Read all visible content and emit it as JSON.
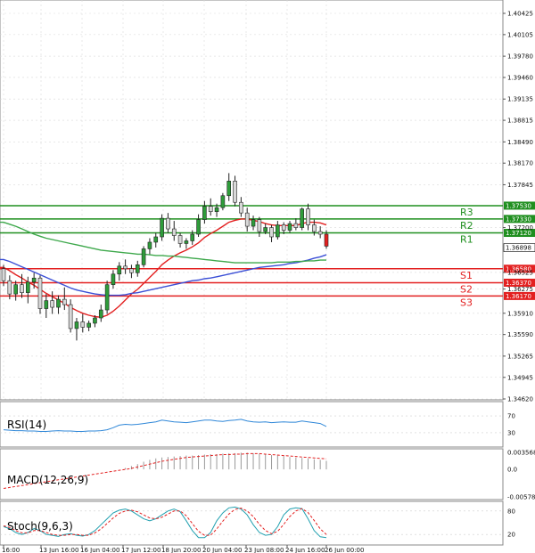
{
  "chart_data": [
    {
      "type": "candlestick",
      "price_ticks": [
        "1.40425",
        "1.40105",
        "1.39780",
        "1.39460",
        "1.39135",
        "1.38815",
        "1.38490",
        "1.38170",
        "1.37845",
        "1.37200",
        "1.36525",
        "1.36275",
        "1.35910",
        "1.35590",
        "1.35265",
        "1.34945",
        "1.34620"
      ],
      "time_labels": [
        "16:00",
        "13 Jun 16:00",
        "16 Jun 04:00",
        "17 Jun 12:00",
        "18 Jun 20:00",
        "20 Jun 04:00",
        "23 Jun 08:00",
        "24 Jun 16:00",
        "26 Jun 00:00"
      ],
      "current_price": "1.36898",
      "levels": [
        {
          "name": "R3",
          "value": "1.37530",
          "color": "#1f8f1f"
        },
        {
          "name": "R2",
          "value": "1.37330",
          "color": "#1f8f1f"
        },
        {
          "name": "R1",
          "value": "1.37120",
          "color": "#1f8f1f"
        },
        {
          "name": "S1",
          "value": "1.36580",
          "color": "#e32020"
        },
        {
          "name": "S2",
          "value": "1.36370",
          "color": "#e32020"
        },
        {
          "name": "S3",
          "value": "1.36170",
          "color": "#e32020"
        }
      ],
      "candles": [
        [
          1.3658,
          1.3664,
          1.3632,
          1.364
        ],
        [
          1.364,
          1.3648,
          1.3612,
          1.362
        ],
        [
          1.362,
          1.364,
          1.361,
          1.3634
        ],
        [
          1.3634,
          1.365,
          1.3614,
          1.3622
        ],
        [
          1.3622,
          1.3646,
          1.3606,
          1.3638
        ],
        [
          1.3638,
          1.3652,
          1.3628,
          1.3644
        ],
        [
          1.3644,
          1.3648,
          1.359,
          1.3598
        ],
        [
          1.3598,
          1.362,
          1.3584,
          1.361
        ],
        [
          1.361,
          1.3624,
          1.359,
          1.36
        ],
        [
          1.36,
          1.3618,
          1.359,
          1.3612
        ],
        [
          1.3612,
          1.363,
          1.3596,
          1.3604
        ],
        [
          1.3604,
          1.3612,
          1.3562,
          1.3568
        ],
        [
          1.3568,
          1.3584,
          1.355,
          1.3578
        ],
        [
          1.3578,
          1.359,
          1.3562,
          1.357
        ],
        [
          1.357,
          1.358,
          1.3564,
          1.3576
        ],
        [
          1.3576,
          1.3588,
          1.357,
          1.3584
        ],
        [
          1.3584,
          1.3604,
          1.3578,
          1.3596
        ],
        [
          1.3596,
          1.364,
          1.359,
          1.3634
        ],
        [
          1.3634,
          1.3656,
          1.3628,
          1.365
        ],
        [
          1.365,
          1.3668,
          1.364,
          1.3662
        ],
        [
          1.3662,
          1.3672,
          1.365,
          1.3658
        ],
        [
          1.3658,
          1.3664,
          1.3644,
          1.3652
        ],
        [
          1.3652,
          1.367,
          1.3646,
          1.3664
        ],
        [
          1.3664,
          1.3692,
          1.366,
          1.3688
        ],
        [
          1.3688,
          1.3704,
          1.368,
          1.3698
        ],
        [
          1.3698,
          1.3712,
          1.369,
          1.3706
        ],
        [
          1.3706,
          1.374,
          1.37,
          1.3734
        ],
        [
          1.3734,
          1.3742,
          1.3712,
          1.3718
        ],
        [
          1.3718,
          1.373,
          1.37,
          1.3708
        ],
        [
          1.3708,
          1.3712,
          1.369,
          1.3696
        ],
        [
          1.3696,
          1.3704,
          1.3688,
          1.37
        ],
        [
          1.37,
          1.3716,
          1.3694,
          1.371
        ],
        [
          1.371,
          1.374,
          1.3706,
          1.3732
        ],
        [
          1.3732,
          1.376,
          1.3726,
          1.3752
        ],
        [
          1.3752,
          1.3764,
          1.3738,
          1.3744
        ],
        [
          1.3744,
          1.3756,
          1.3736,
          1.375
        ],
        [
          1.375,
          1.3772,
          1.3746,
          1.3768
        ],
        [
          1.3768,
          1.3802,
          1.376,
          1.379
        ],
        [
          1.379,
          1.3798,
          1.3752,
          1.3758
        ],
        [
          1.3758,
          1.3766,
          1.3736,
          1.3742
        ],
        [
          1.3742,
          1.375,
          1.3714,
          1.3722
        ],
        [
          1.3722,
          1.3738,
          1.3716,
          1.3732
        ],
        [
          1.3732,
          1.3736,
          1.3706,
          1.3714
        ],
        [
          1.3714,
          1.3726,
          1.371,
          1.372
        ],
        [
          1.372,
          1.3724,
          1.3698,
          1.3706
        ],
        [
          1.3706,
          1.373,
          1.3702,
          1.3724
        ],
        [
          1.3724,
          1.3728,
          1.371,
          1.3716
        ],
        [
          1.3716,
          1.373,
          1.3712,
          1.3726
        ],
        [
          1.3726,
          1.3734,
          1.3716,
          1.372
        ],
        [
          1.372,
          1.375,
          1.3716,
          1.3748
        ],
        [
          1.3748,
          1.3756,
          1.3716,
          1.3724
        ],
        [
          1.3724,
          1.3732,
          1.3708,
          1.3714
        ],
        [
          1.3714,
          1.3722,
          1.3704,
          1.371
        ],
        [
          1.371,
          1.3716,
          1.3688,
          1.3692
        ]
      ],
      "series": [
        {
          "color": "#e32020",
          "values": [
            1.366,
            1.3655,
            1.3649,
            1.3644,
            1.3638,
            1.3633,
            1.3627,
            1.3621,
            1.3616,
            1.3611,
            1.3606,
            1.36,
            1.3595,
            1.3591,
            1.3588,
            1.3586,
            1.3585,
            1.3588,
            1.3594,
            1.3602,
            1.3611,
            1.362,
            1.3627,
            1.3636,
            1.3645,
            1.3654,
            1.3664,
            1.3671,
            1.3677,
            1.3682,
            1.3686,
            1.3691,
            1.3697,
            1.3705,
            1.3711,
            1.3716,
            1.3722,
            1.3728,
            1.3731,
            1.3733,
            1.3733,
            1.3731,
            1.3729,
            1.3726,
            1.3724,
            1.3723,
            1.3723,
            1.3723,
            1.3723,
            1.3726,
            1.3728,
            1.3728,
            1.3727,
            1.3724
          ]
        },
        {
          "color": "#3b4fd6",
          "values": [
            1.3672,
            1.3669,
            1.3665,
            1.3661,
            1.3657,
            1.3653,
            1.3649,
            1.3645,
            1.3641,
            1.3637,
            1.3633,
            1.3629,
            1.3626,
            1.3624,
            1.3622,
            1.362,
            1.3619,
            1.3618,
            1.3618,
            1.3618,
            1.3619,
            1.3621,
            1.3622,
            1.3624,
            1.3626,
            1.3628,
            1.363,
            1.3632,
            1.3634,
            1.3636,
            1.3638,
            1.364,
            1.3641,
            1.3643,
            1.3644,
            1.3646,
            1.3648,
            1.365,
            1.3652,
            1.3654,
            1.3656,
            1.3658,
            1.366,
            1.3661,
            1.3662,
            1.3663,
            1.3664,
            1.3666,
            1.3667,
            1.3669,
            1.3671,
            1.3674,
            1.3676,
            1.3679
          ]
        },
        {
          "color": "#3da84b",
          "values": [
            1.3728,
            1.3725,
            1.3722,
            1.3718,
            1.3714,
            1.371,
            1.3707,
            1.3704,
            1.3702,
            1.37,
            1.3698,
            1.3696,
            1.3694,
            1.3692,
            1.369,
            1.3688,
            1.3686,
            1.3685,
            1.3684,
            1.3683,
            1.3682,
            1.3681,
            1.368,
            1.368,
            1.3679,
            1.3678,
            1.3678,
            1.3677,
            1.3677,
            1.3676,
            1.3675,
            1.3674,
            1.3673,
            1.3672,
            1.3671,
            1.367,
            1.3669,
            1.3668,
            1.3667,
            1.3667,
            1.3667,
            1.3667,
            1.3667,
            1.3667,
            1.3667,
            1.3668,
            1.3668,
            1.3668,
            1.3669,
            1.3669,
            1.367,
            1.367,
            1.3671,
            1.3671
          ]
        }
      ]
    },
    {
      "type": "line",
      "label": "RSI(14)",
      "ticks": [
        "70",
        "30"
      ],
      "ylim": [
        0,
        100
      ],
      "values": [
        37,
        36,
        35,
        35,
        34,
        34,
        33,
        33,
        34,
        35,
        34,
        34,
        33,
        33,
        34,
        34,
        35,
        37,
        42,
        48,
        50,
        49,
        50,
        52,
        54,
        56,
        60,
        58,
        56,
        55,
        54,
        56,
        58,
        60,
        60,
        58,
        57,
        59,
        60,
        62,
        58,
        56,
        55,
        56,
        54,
        55,
        56,
        55,
        55,
        58,
        56,
        54,
        52,
        45
      ]
    },
    {
      "type": "bar",
      "label": "MACD(12,26,9)",
      "ticks": [
        "0.003568",
        "0.0",
        "-0.005785"
      ],
      "values": [
        0.0,
        0.0,
        0.0,
        0.0,
        0.0,
        0.0,
        0.0,
        0.0,
        0.0,
        0.0,
        0.0,
        0.0,
        0.0,
        0.0,
        0.0,
        0.0,
        0.0,
        0.0,
        0.0,
        0.0,
        0.0003,
        0.0007,
        0.0011,
        0.0016,
        0.002,
        0.0023,
        0.0025,
        0.0026,
        0.0027,
        0.0028,
        0.0029,
        0.0029,
        0.003,
        0.0031,
        0.0032,
        0.0032,
        0.0033,
        0.0034,
        0.0034,
        0.0035,
        0.0035,
        0.0034,
        0.0033,
        0.0032,
        0.003,
        0.0029,
        0.0028,
        0.0026,
        0.0025,
        0.0024,
        0.0023,
        0.0021,
        0.002,
        0.0018
      ],
      "signal": [
        -0.004,
        -0.0038,
        -0.0036,
        -0.0034,
        -0.0032,
        -0.003,
        -0.0028,
        -0.0026,
        -0.0024,
        -0.0022,
        -0.002,
        -0.0018,
        -0.0016,
        -0.0014,
        -0.0012,
        -0.001,
        -0.0008,
        -0.0006,
        -0.0004,
        -0.0002,
        0.0,
        0.0002,
        0.0005,
        0.0008,
        0.0011,
        0.0014,
        0.0017,
        0.0019,
        0.0021,
        0.0023,
        0.0025,
        0.0026,
        0.0027,
        0.0028,
        0.0029,
        0.003,
        0.0031,
        0.0031,
        0.0032,
        0.0032,
        0.0033,
        0.0033,
        0.0033,
        0.0032,
        0.0031,
        0.003,
        0.0029,
        0.0028,
        0.0027,
        0.0026,
        0.0025,
        0.0024,
        0.0023,
        0.0022
      ]
    },
    {
      "type": "line",
      "label": "Stoch(9,6,3)",
      "ticks": [
        "80",
        "20"
      ],
      "ylim": [
        0,
        100
      ],
      "k": [
        40,
        35,
        25,
        20,
        25,
        35,
        30,
        20,
        18,
        15,
        20,
        22,
        18,
        16,
        20,
        30,
        45,
        60,
        75,
        82,
        85,
        80,
        70,
        60,
        55,
        60,
        70,
        80,
        85,
        78,
        55,
        30,
        12,
        12,
        25,
        55,
        75,
        88,
        90,
        85,
        70,
        45,
        25,
        18,
        20,
        40,
        70,
        85,
        88,
        86,
        60,
        30,
        14,
        12
      ],
      "d": [
        42,
        38,
        30,
        24,
        24,
        30,
        30,
        25,
        20,
        18,
        18,
        20,
        20,
        18,
        18,
        24,
        34,
        48,
        62,
        74,
        80,
        82,
        78,
        70,
        62,
        60,
        64,
        72,
        80,
        80,
        68,
        48,
        28,
        18,
        18,
        34,
        54,
        72,
        84,
        87,
        80,
        66,
        46,
        30,
        22,
        28,
        46,
        66,
        80,
        86,
        76,
        56,
        34,
        20
      ]
    }
  ]
}
